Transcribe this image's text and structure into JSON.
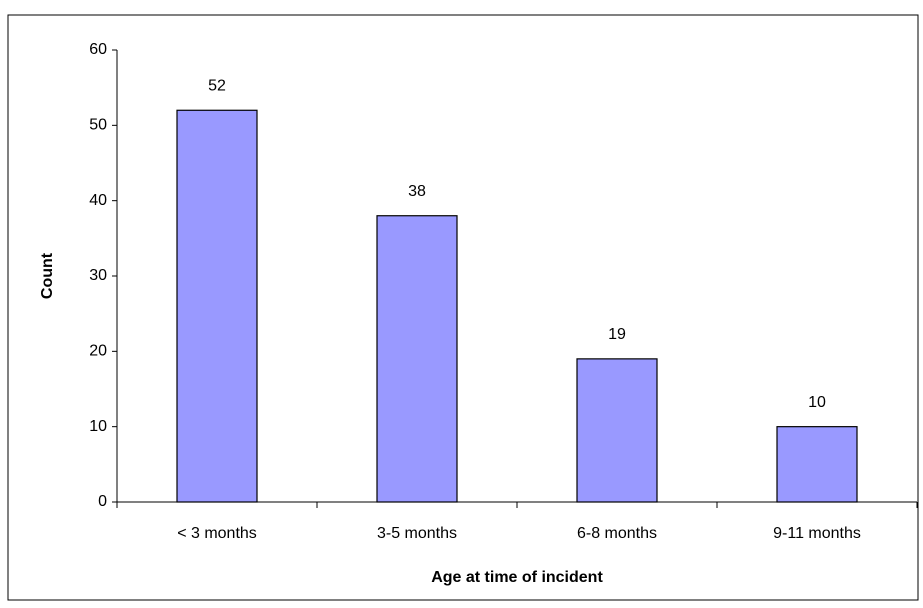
{
  "chart_data": {
    "type": "bar",
    "x_label": "Age at time of incident",
    "y_label": "Count",
    "categories": [
      "< 3 months",
      "3-5 months",
      "6-8 months",
      "9-11 months"
    ],
    "values": [
      52,
      38,
      19,
      10
    ],
    "color": "#9999ff",
    "ylim": [
      0,
      60
    ],
    "yticks": [
      0,
      10,
      20,
      30,
      40,
      50,
      60
    ],
    "grid": false,
    "data_labels": true
  }
}
